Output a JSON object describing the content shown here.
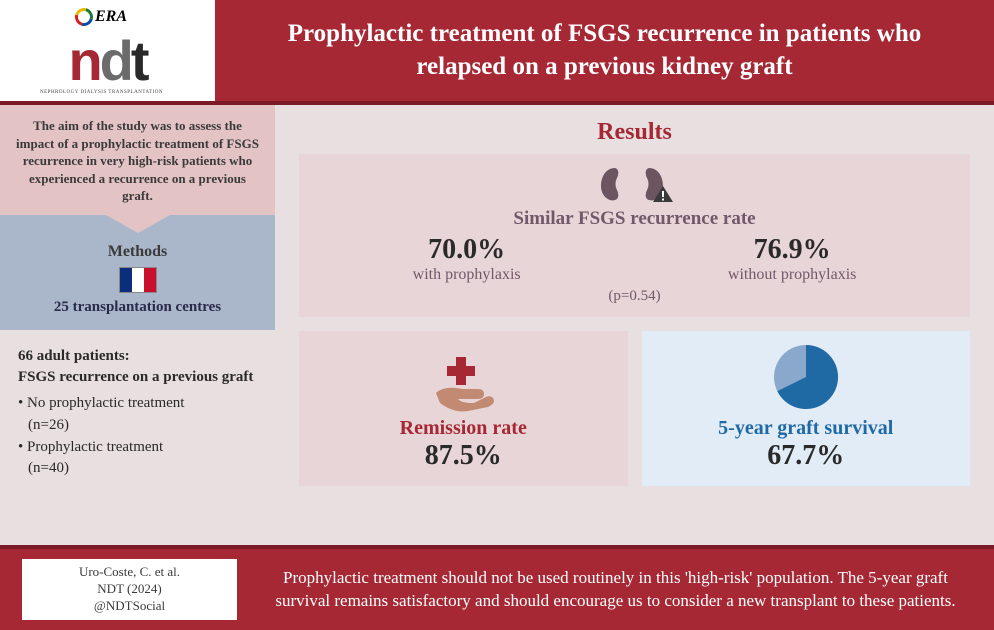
{
  "colors": {
    "brand_red": "#a52834",
    "brand_red_dark": "#7a1a26",
    "page_bg": "#e8dfe0",
    "aim_bg": "#e4c3c5",
    "methods_bg": "#aab7cb",
    "panel_pink": "#e8d5d7",
    "panel_blue": "#e2ecf6",
    "text_muted": "#71586a",
    "accent_blue": "#1f6aa5",
    "pie_fill": "#1f6aa5",
    "pie_rest": "#8aa8cc"
  },
  "header": {
    "logo_top": "ERA",
    "logo_main": "ndt",
    "logo_sub": "NEPHROLOGY DIALYSIS TRANSPLANTATION",
    "title": "Prophylactic treatment of FSGS recurrence in patients who relapsed on a previous kidney graft"
  },
  "aim": "The aim of the study was to assess the impact of a prophylactic treatment of FSGS recurrence in very high-risk patients who experienced a recurrence on a previous graft.",
  "methods": {
    "heading": "Methods",
    "country": "France",
    "centres": "25 transplantation centres"
  },
  "patients": {
    "headline": "66 adult patients:",
    "subline": "FSGS recurrence on a previous graft",
    "groups": [
      {
        "label": "No prophylactic treatment",
        "n": "(n=26)"
      },
      {
        "label": "Prophylactic treatment",
        "n": "(n=40)"
      }
    ]
  },
  "results": {
    "heading": "Results",
    "recurrence": {
      "label": "Similar FSGS recurrence rate",
      "with_pct": "70.0%",
      "with_lbl": "with prophylaxis",
      "without_pct": "76.9%",
      "without_lbl": "without prophylaxis",
      "pvalue": "(p=0.54)"
    },
    "remission": {
      "label": "Remission rate",
      "value": "87.5%",
      "icon": "medical-cross-hand"
    },
    "survival": {
      "label": "5-year graft survival",
      "value": "67.7%",
      "pie_pct": 67.7,
      "icon": "pie-chart"
    }
  },
  "footer": {
    "citation": {
      "authors": "Uro-Coste, C. et al.",
      "journal": "NDT (2024)",
      "handle": "@NDTSocial"
    },
    "conclusion": "Prophylactic treatment should not be used routinely in this 'high-risk' population. The 5-year graft survival remains satisfactory and should encourage us to consider a new transplant to these patients."
  }
}
